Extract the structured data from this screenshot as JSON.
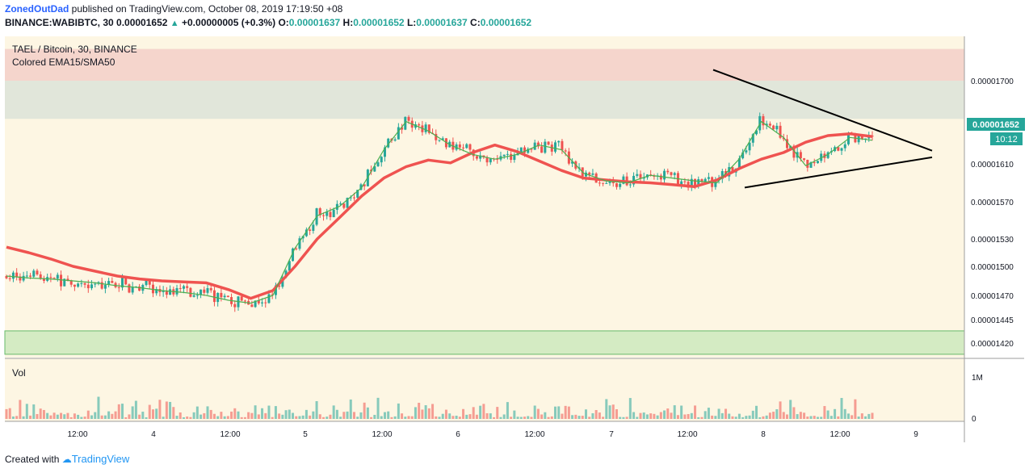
{
  "header": {
    "author": "ZonedOutDad",
    "published_text": "published on TradingView.com, October 08, 2019 17:19:50 +08",
    "symbol_line": "BINANCE:WABIBTC, 30",
    "last": "0.00001652",
    "change": "+0.00000005 (+0.3%)",
    "o_label": "O:",
    "o": "0.00001637",
    "h_label": "H:",
    "h": "0.00001652",
    "l_label": "L:",
    "l": "0.00001637",
    "c_label": "C:",
    "c": "0.00001652"
  },
  "legend": {
    "title": "TAEL / Bitcoin, 30, BINANCE",
    "indicator": "Colored EMA15/SMA50",
    "volume": "Vol"
  },
  "footer": {
    "created_with": "Created with",
    "brand": "TradingView"
  },
  "colors": {
    "up": "#26a69a",
    "down": "#ef5350",
    "bg": "#fdf6e3"
  },
  "chart_data": {
    "type": "candlestick",
    "y_axis_labels": [
      "0.00001700",
      "0.00001652",
      "0.00001610",
      "0.00001570",
      "0.00001530",
      "0.00001500",
      "0.00001470",
      "0.00001445",
      "0.00001420"
    ],
    "last_price_label": "0.00001652",
    "countdown_label": "10:12",
    "volume_axis_labels": [
      "1M",
      "0"
    ],
    "x_axis_labels": [
      "12:00",
      "4",
      "12:00",
      "5",
      "12:00",
      "6",
      "12:00",
      "7",
      "12:00",
      "8",
      "12:00",
      "9"
    ],
    "zones": [
      {
        "name": "resistance-top",
        "from": 1.7e-05,
        "to": 1.735e-05,
        "color": "#f5d5cc"
      },
      {
        "name": "resistance-bottom",
        "from": 1.658e-05,
        "to": 1.7e-05,
        "color": "#e1e6da"
      },
      {
        "name": "support",
        "from": 1.408e-05,
        "to": 1.433e-05,
        "color": "#d4ebc3"
      }
    ],
    "sma50": [
      1.521e-05,
      1.515e-05,
      1.508e-05,
      1.5e-05,
      1.495e-05,
      1.49e-05,
      1.487e-05,
      1.485e-05,
      1.484e-05,
      1.483e-05,
      1.476e-05,
      1.467e-05,
      1.475e-05,
      1.5e-05,
      1.53e-05,
      1.553e-05,
      1.576e-05,
      1.595e-05,
      1.607e-05,
      1.614e-05,
      1.611e-05,
      1.622e-05,
      1.63e-05,
      1.623e-05,
      1.613e-05,
      1.603e-05,
      1.595e-05,
      1.593e-05,
      1.591e-05,
      1.59e-05,
      1.588e-05,
      1.586e-05,
      1.593e-05,
      1.605e-05,
      1.615e-05,
      1.622e-05,
      1.633e-05,
      1.64e-05,
      1.642e-05,
      1.639e-05
    ],
    "ema15": [
      1.49e-05,
      1.488e-05,
      1.487e-05,
      1.485e-05,
      1.483e-05,
      1.48e-05,
      1.478e-05,
      1.475e-05,
      1.473e-05,
      1.47e-05,
      1.465e-05,
      1.462e-05,
      1.47e-05,
      1.52e-05,
      1.555e-05,
      1.565e-05,
      1.585e-05,
      1.625e-05,
      1.655e-05,
      1.645e-05,
      1.63e-05,
      1.62e-05,
      1.615e-05,
      1.62e-05,
      1.63e-05,
      1.625e-05,
      1.6e-05,
      1.592e-05,
      1.59e-05,
      1.598e-05,
      1.595e-05,
      1.592e-05,
      1.59e-05,
      1.615e-05,
      1.655e-05,
      1.638e-05,
      1.608e-05,
      1.62e-05,
      1.638e-05,
      1.635e-05
    ],
    "triangle": {
      "upper": [
        [
          1.712e-05,
          0
        ],
        [
          1.624e-05,
          1
        ]
      ],
      "lower": [
        [
          1.585e-05,
          0
        ],
        [
          1.617e-05,
          1
        ]
      ]
    }
  }
}
